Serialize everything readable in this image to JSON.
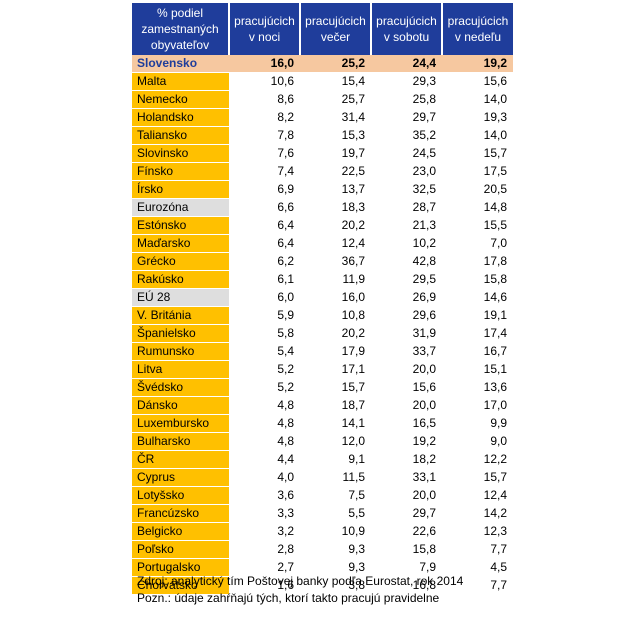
{
  "chart_data": {
    "type": "table",
    "columns": [
      "% podiel zamestnaných obyvateľov",
      "pracujúcich v noci",
      "pracujúcich večer",
      "pracujúcich v sobotu",
      "pracujúcich v nedeľu"
    ],
    "rows": [
      {
        "country": "Slovensko",
        "values": [
          "16,0",
          "25,2",
          "24,4",
          "19,2"
        ],
        "style": "highlight"
      },
      {
        "country": "Malta",
        "values": [
          "10,6",
          "15,4",
          "29,3",
          "15,6"
        ],
        "style": "normal"
      },
      {
        "country": "Nemecko",
        "values": [
          "8,6",
          "25,7",
          "25,8",
          "14,0"
        ],
        "style": "normal"
      },
      {
        "country": "Holandsko",
        "values": [
          "8,2",
          "31,4",
          "29,7",
          "19,3"
        ],
        "style": "normal"
      },
      {
        "country": "Taliansko",
        "values": [
          "7,8",
          "15,3",
          "35,2",
          "14,0"
        ],
        "style": "normal"
      },
      {
        "country": "Slovinsko",
        "values": [
          "7,6",
          "19,7",
          "24,5",
          "15,7"
        ],
        "style": "normal"
      },
      {
        "country": "Fínsko",
        "values": [
          "7,4",
          "22,5",
          "23,0",
          "17,5"
        ],
        "style": "normal"
      },
      {
        "country": "Írsko",
        "values": [
          "6,9",
          "13,7",
          "32,5",
          "20,5"
        ],
        "style": "normal"
      },
      {
        "country": "Eurozóna",
        "values": [
          "6,6",
          "18,3",
          "28,7",
          "14,8"
        ],
        "style": "grey"
      },
      {
        "country": "Estónsko",
        "values": [
          "6,4",
          "20,2",
          "21,3",
          "15,5"
        ],
        "style": "normal"
      },
      {
        "country": "Maďarsko",
        "values": [
          "6,4",
          "12,4",
          "10,2",
          "7,0"
        ],
        "style": "normal"
      },
      {
        "country": "Grécko",
        "values": [
          "6,2",
          "36,7",
          "42,8",
          "17,8"
        ],
        "style": "normal"
      },
      {
        "country": "Rakúsko",
        "values": [
          "6,1",
          "11,9",
          "29,5",
          "15,8"
        ],
        "style": "normal"
      },
      {
        "country": "EÚ 28",
        "values": [
          "6,0",
          "16,0",
          "26,9",
          "14,6"
        ],
        "style": "grey"
      },
      {
        "country": "V. Británia",
        "values": [
          "5,9",
          "10,8",
          "29,6",
          "19,1"
        ],
        "style": "normal"
      },
      {
        "country": "Španielsko",
        "values": [
          "5,8",
          "20,2",
          "31,9",
          "17,4"
        ],
        "style": "normal"
      },
      {
        "country": "Rumunsko",
        "values": [
          "5,4",
          "17,9",
          "33,7",
          "16,7"
        ],
        "style": "normal"
      },
      {
        "country": "Litva",
        "values": [
          "5,2",
          "17,1",
          "20,0",
          "15,1"
        ],
        "style": "normal"
      },
      {
        "country": "Švédsko",
        "values": [
          "5,2",
          "15,7",
          "15,6",
          "13,6"
        ],
        "style": "normal"
      },
      {
        "country": "Dánsko",
        "values": [
          "4,8",
          "18,7",
          "20,0",
          "17,0"
        ],
        "style": "normal"
      },
      {
        "country": "Luxembursko",
        "values": [
          "4,8",
          "14,1",
          "16,5",
          "9,9"
        ],
        "style": "normal"
      },
      {
        "country": "Bulharsko",
        "values": [
          "4,8",
          "12,0",
          "19,2",
          "9,0"
        ],
        "style": "normal"
      },
      {
        "country": "ČR",
        "values": [
          "4,4",
          "9,1",
          "18,2",
          "12,2"
        ],
        "style": "normal"
      },
      {
        "country": "Cyprus",
        "values": [
          "4,0",
          "11,5",
          "33,1",
          "15,7"
        ],
        "style": "normal"
      },
      {
        "country": "Lotyšsko",
        "values": [
          "3,6",
          "7,5",
          "20,0",
          "12,4"
        ],
        "style": "normal"
      },
      {
        "country": "Francúzsko",
        "values": [
          "3,3",
          "5,5",
          "29,7",
          "14,2"
        ],
        "style": "normal"
      },
      {
        "country": "Belgicko",
        "values": [
          "3,2",
          "10,9",
          "22,6",
          "12,3"
        ],
        "style": "normal"
      },
      {
        "country": "Poľsko",
        "values": [
          "2,8",
          "9,3",
          "15,8",
          "7,7"
        ],
        "style": "normal"
      },
      {
        "country": "Portugalsko",
        "values": [
          "2,7",
          "9,3",
          "7,9",
          "4,5"
        ],
        "style": "normal"
      },
      {
        "country": "Chorvátsko",
        "values": [
          "1,6",
          "3,8",
          "16,8",
          "7,7"
        ],
        "style": "normal"
      }
    ]
  },
  "notes": {
    "source": "Zdroj: analytický tím Poštovej banky podľa Eurostat, rok 2014",
    "remark": "Pozn.: údaje zahŕňajú tých, ktorí takto pracujú pravidelne"
  },
  "colors": {
    "header_bg": "#1f3d9b",
    "country_cell": "#ffc000",
    "aggregate_cell": "#dedede",
    "highlight_row": "#f6c8a0"
  }
}
